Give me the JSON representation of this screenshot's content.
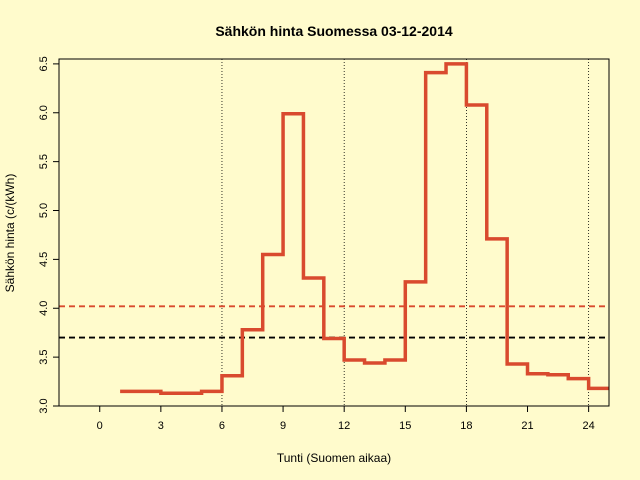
{
  "chart_data": {
    "type": "line",
    "title": "Sähkön hinta Suomessa 03-12-2014",
    "xlabel": "Tunti (Suomen aikaa)",
    "ylabel": "Sähkön hinta (c/(kWh)",
    "xlim": [
      -2,
      25
    ],
    "ylim": [
      3.0,
      6.55
    ],
    "x_ticks": [
      "0",
      "3",
      "6",
      "9",
      "12",
      "15",
      "18",
      "21",
      "24"
    ],
    "y_ticks": [
      "3.0",
      "3.5",
      "4.0",
      "4.5",
      "5.0",
      "5.5",
      "6.0",
      "6.5"
    ],
    "vertical_gridlines_x": [
      6,
      12,
      18,
      24
    ],
    "grid": false,
    "step_series": {
      "x": [
        1,
        2,
        3,
        4,
        5,
        6,
        7,
        8,
        9,
        10,
        11,
        12,
        13,
        14,
        15,
        16,
        17,
        18,
        19,
        20,
        21,
        22,
        23,
        24,
        25
      ],
      "y": [
        3.15,
        3.15,
        3.13,
        3.13,
        3.15,
        3.31,
        3.78,
        4.55,
        5.99,
        4.31,
        3.69,
        3.47,
        3.44,
        3.47,
        4.27,
        6.41,
        6.5,
        6.08,
        4.71,
        3.43,
        3.33,
        3.32,
        3.28,
        3.18,
        3.18
      ],
      "color": "#D94A2E"
    },
    "reference_lines": [
      {
        "y": 4.02,
        "color": "#D94A2E",
        "style": "dashed"
      },
      {
        "y": 3.7,
        "color": "#000000",
        "style": "dashed"
      }
    ]
  }
}
